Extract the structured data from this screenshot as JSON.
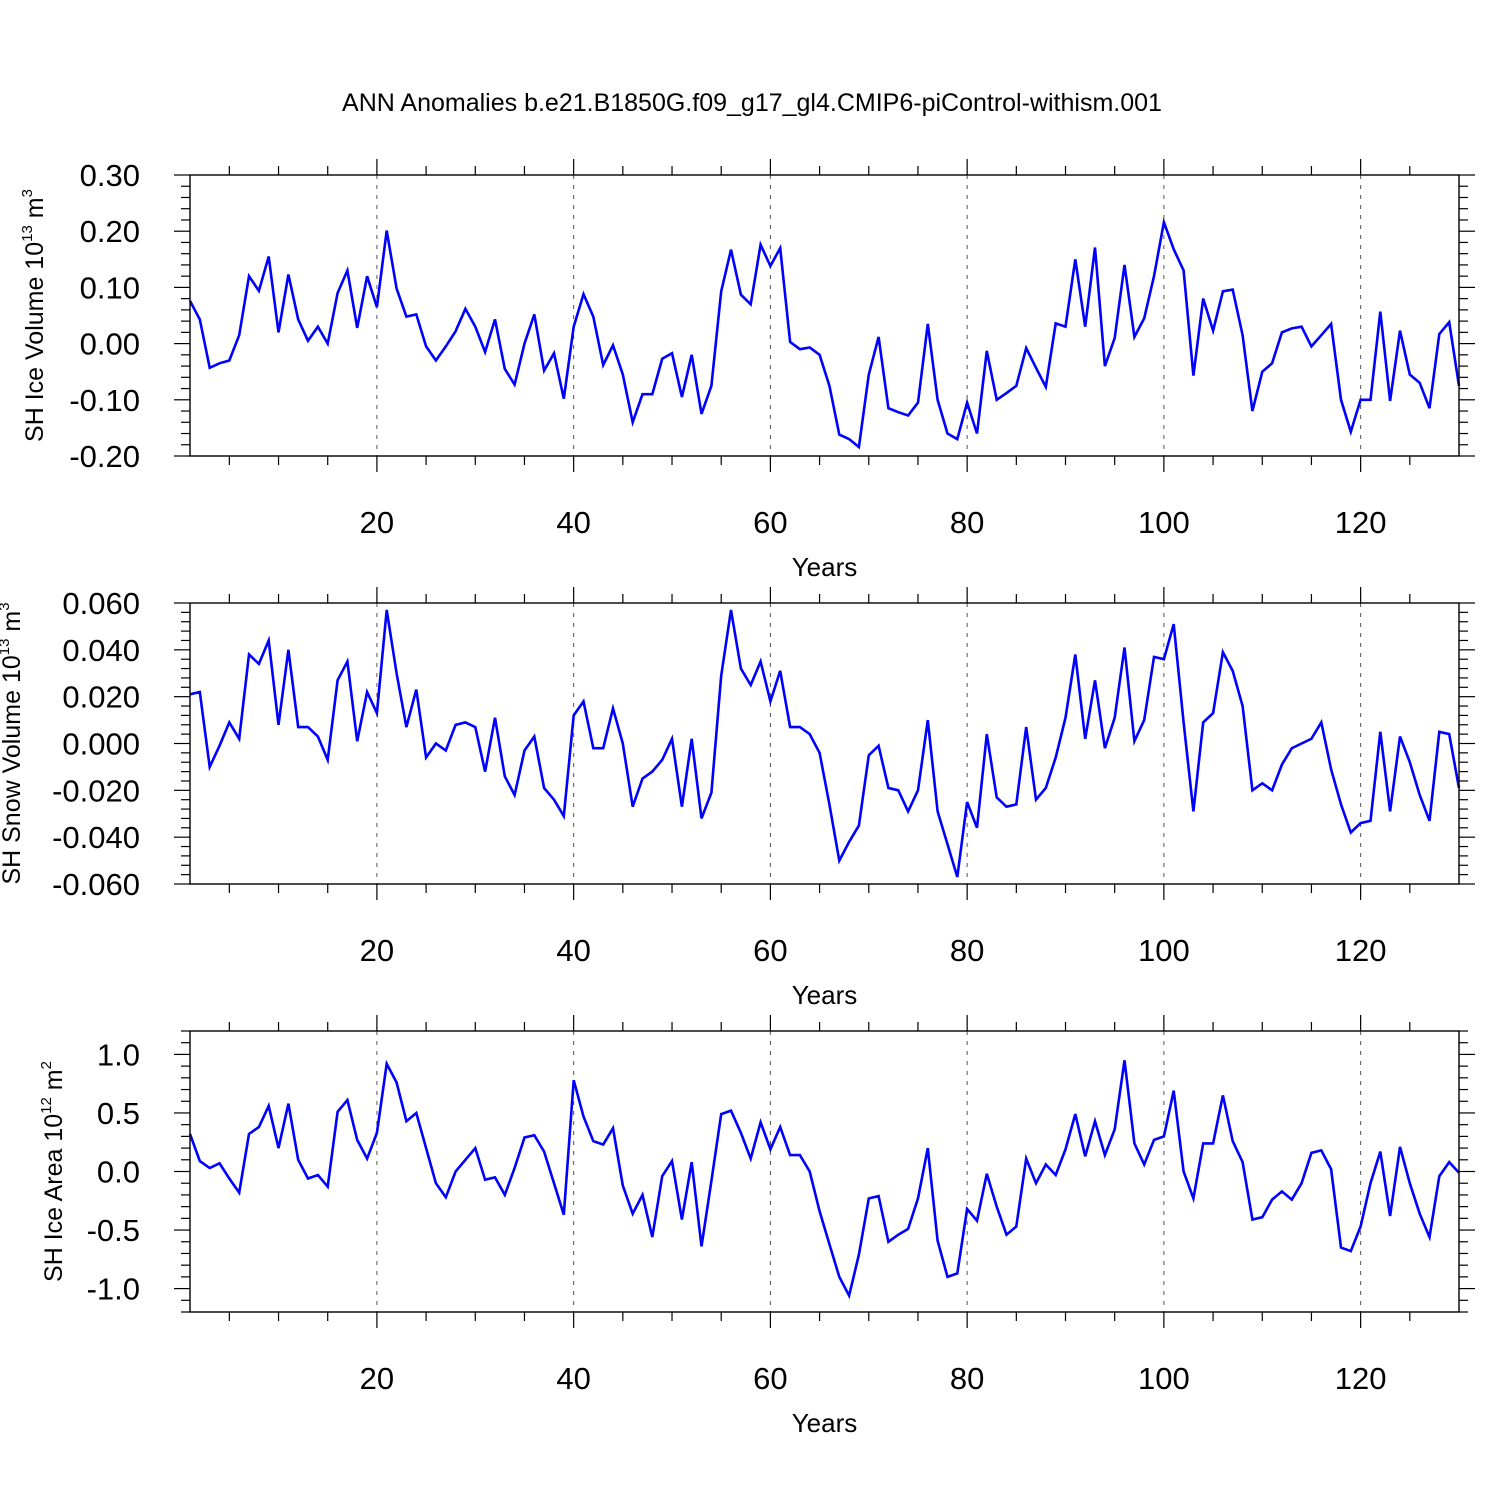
{
  "title": "ANN Anomalies b.e21.B1850G.f09_g17_gl4.CMIP6-piControl-withism.001",
  "line_color": "#0000ff",
  "chart_data": [
    {
      "type": "line",
      "xlabel": "Years",
      "ylabel": {
        "text": "SH Ice Volume 10",
        "exp": "13",
        "unit_base": " m",
        "unit_exp": "3"
      },
      "xlim": [
        1,
        130
      ],
      "ylim": [
        -0.2,
        0.3
      ],
      "xticks": [
        20,
        40,
        60,
        80,
        100,
        120
      ],
      "xtick_labels": [
        "20",
        "40",
        "60",
        "80",
        "100",
        "120"
      ],
      "yticks": [
        -0.2,
        -0.1,
        0.0,
        0.1,
        0.2,
        0.3
      ],
      "ytick_labels": [
        "-0.20",
        "-0.10",
        "0.00",
        "0.10",
        "0.20",
        "0.30"
      ],
      "grid": "vertical dashed at major x ticks",
      "values": [
        0.076,
        0.043,
        -0.043,
        -0.035,
        -0.03,
        0.015,
        0.12,
        0.094,
        0.155,
        0.02,
        0.123,
        0.043,
        0.005,
        0.03,
        0.0,
        0.09,
        0.13,
        0.028,
        0.12,
        0.065,
        0.201,
        0.098,
        0.048,
        0.052,
        -0.005,
        -0.03,
        -0.005,
        0.022,
        0.062,
        0.03,
        -0.015,
        0.043,
        -0.045,
        -0.073,
        0.0,
        0.052,
        -0.048,
        -0.017,
        -0.098,
        0.03,
        0.088,
        0.048,
        -0.038,
        -0.003,
        -0.055,
        -0.14,
        -0.09,
        -0.09,
        -0.027,
        -0.017,
        -0.095,
        -0.02,
        -0.125,
        -0.075,
        0.093,
        0.167,
        0.087,
        0.07,
        0.176,
        0.138,
        0.17,
        0.003,
        -0.01,
        -0.007,
        -0.02,
        -0.075,
        -0.162,
        -0.17,
        -0.184,
        -0.055,
        0.012,
        -0.115,
        -0.122,
        -0.128,
        -0.105,
        0.035,
        -0.1,
        -0.16,
        -0.17,
        -0.105,
        -0.16,
        -0.013,
        -0.1,
        -0.088,
        -0.075,
        -0.008,
        -0.043,
        -0.077,
        0.036,
        0.03,
        0.15,
        0.03,
        0.171,
        -0.04,
        0.01,
        0.14,
        0.012,
        0.045,
        0.12,
        0.216,
        0.168,
        0.13,
        -0.057,
        0.08,
        0.023,
        0.093,
        0.096,
        0.015,
        -0.12,
        -0.05,
        -0.035,
        0.02,
        0.027,
        0.03,
        -0.005,
        0.015,
        0.035,
        -0.1,
        -0.157,
        -0.1,
        -0.1,
        0.057,
        -0.102,
        0.023,
        -0.055,
        -0.07,
        -0.115,
        0.017,
        0.038,
        -0.075
      ]
    },
    {
      "type": "line",
      "xlabel": "Years",
      "ylabel": {
        "text": "SH Snow Volume 10",
        "exp": "13",
        "unit_base": " m",
        "unit_exp": "3"
      },
      "xlim": [
        1,
        130
      ],
      "ylim": [
        -0.06,
        0.06
      ],
      "xticks": [
        20,
        40,
        60,
        80,
        100,
        120
      ],
      "xtick_labels": [
        "20",
        "40",
        "60",
        "80",
        "100",
        "120"
      ],
      "yticks": [
        -0.06,
        -0.04,
        -0.02,
        0.0,
        0.02,
        0.04,
        0.06
      ],
      "ytick_labels": [
        "-0.060",
        "-0.040",
        "-0.020",
        "0.000",
        "0.020",
        "0.040",
        "0.060"
      ],
      "grid": "vertical dashed at major x ticks",
      "values": [
        0.021,
        0.022,
        -0.01,
        -0.001,
        0.009,
        0.002,
        0.038,
        0.034,
        0.044,
        0.008,
        0.04,
        0.007,
        0.007,
        0.003,
        -0.007,
        0.027,
        0.035,
        0.001,
        0.022,
        0.013,
        0.057,
        0.03,
        0.007,
        0.023,
        -0.006,
        0.0,
        -0.003,
        0.008,
        0.009,
        0.007,
        -0.012,
        0.011,
        -0.014,
        -0.022,
        -0.003,
        0.003,
        -0.019,
        -0.024,
        -0.031,
        0.012,
        0.018,
        -0.002,
        -0.002,
        0.015,
        0.0,
        -0.027,
        -0.015,
        -0.012,
        -0.007,
        0.002,
        -0.027,
        0.002,
        -0.032,
        -0.021,
        0.029,
        0.057,
        0.032,
        0.025,
        0.035,
        0.018,
        0.031,
        0.007,
        0.007,
        0.004,
        -0.004,
        -0.026,
        -0.05,
        -0.042,
        -0.035,
        -0.005,
        -0.001,
        -0.019,
        -0.02,
        -0.029,
        -0.02,
        0.01,
        -0.029,
        -0.043,
        -0.057,
        -0.025,
        -0.036,
        0.004,
        -0.023,
        -0.027,
        -0.026,
        0.007,
        -0.024,
        -0.019,
        -0.006,
        0.011,
        0.038,
        0.002,
        0.027,
        -0.002,
        0.011,
        0.041,
        0.001,
        0.01,
        0.037,
        0.036,
        0.051,
        0.009,
        -0.029,
        0.009,
        0.013,
        0.039,
        0.031,
        0.016,
        -0.02,
        -0.017,
        -0.02,
        -0.009,
        -0.002,
        0.0,
        0.002,
        0.009,
        -0.011,
        -0.026,
        -0.038,
        -0.034,
        -0.033,
        0.005,
        -0.029,
        0.003,
        -0.008,
        -0.022,
        -0.033,
        0.005,
        0.004,
        -0.019
      ]
    },
    {
      "type": "line",
      "xlabel": "Years",
      "ylabel": {
        "text": "SH Ice Area 10",
        "exp": "12",
        "unit_base": " m",
        "unit_exp": "2"
      },
      "xlim": [
        1,
        130
      ],
      "ylim": [
        -1.2,
        1.2
      ],
      "xticks": [
        20,
        40,
        60,
        80,
        100,
        120
      ],
      "xtick_labels": [
        "20",
        "40",
        "60",
        "80",
        "100",
        "120"
      ],
      "yticks": [
        -1.0,
        -0.5,
        0.0,
        0.5,
        1.0
      ],
      "ytick_labels": [
        "-1.0",
        "-0.5",
        "0.0",
        "0.5",
        "1.0"
      ],
      "grid": "vertical dashed at major x ticks",
      "values": [
        0.32,
        0.09,
        0.03,
        0.07,
        -0.06,
        -0.18,
        0.32,
        0.38,
        0.56,
        0.2,
        0.58,
        0.1,
        -0.06,
        -0.03,
        -0.13,
        0.51,
        0.61,
        0.27,
        0.11,
        0.33,
        0.92,
        0.76,
        0.43,
        0.5,
        0.2,
        -0.1,
        -0.22,
        0.0,
        0.1,
        0.2,
        -0.07,
        -0.05,
        -0.2,
        0.03,
        0.29,
        0.31,
        0.17,
        -0.1,
        -0.37,
        0.78,
        0.47,
        0.26,
        0.23,
        0.37,
        -0.12,
        -0.36,
        -0.2,
        -0.56,
        -0.04,
        0.09,
        -0.41,
        0.08,
        -0.64,
        -0.08,
        0.49,
        0.52,
        0.33,
        0.11,
        0.42,
        0.19,
        0.38,
        0.14,
        0.14,
        0.0,
        -0.34,
        -0.62,
        -0.9,
        -1.06,
        -0.71,
        -0.23,
        -0.21,
        -0.6,
        -0.54,
        -0.49,
        -0.23,
        0.2,
        -0.59,
        -0.9,
        -0.87,
        -0.32,
        -0.42,
        -0.02,
        -0.3,
        -0.54,
        -0.47,
        0.11,
        -0.1,
        0.06,
        -0.03,
        0.19,
        0.49,
        0.13,
        0.43,
        0.14,
        0.36,
        0.95,
        0.24,
        0.06,
        0.27,
        0.3,
        0.69,
        0.0,
        -0.23,
        0.24,
        0.24,
        0.65,
        0.26,
        0.08,
        -0.41,
        -0.39,
        -0.24,
        -0.17,
        -0.24,
        -0.1,
        0.16,
        0.18,
        0.02,
        -0.65,
        -0.68,
        -0.47,
        -0.1,
        0.17,
        -0.38,
        0.21,
        -0.1,
        -0.36,
        -0.56,
        -0.04,
        0.08,
        -0.01
      ]
    }
  ]
}
